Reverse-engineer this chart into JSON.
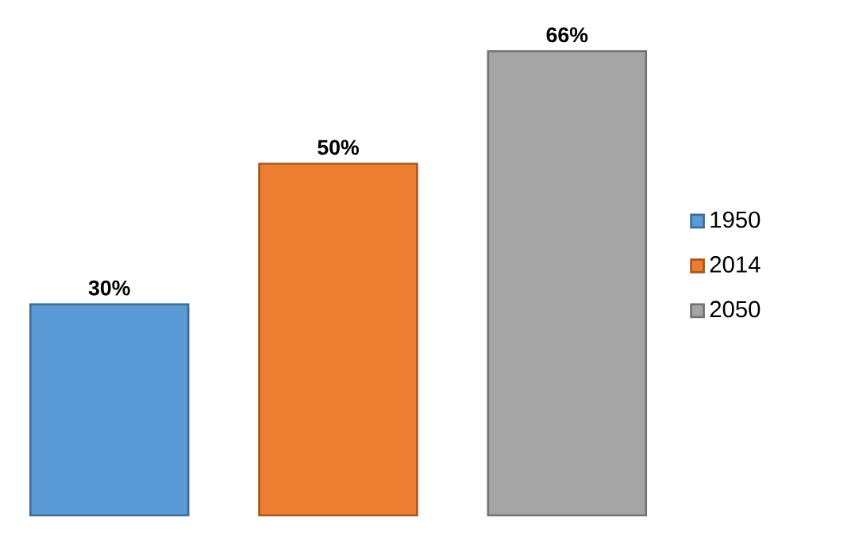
{
  "chart_data": {
    "type": "bar",
    "categories": [
      null
    ],
    "series": [
      {
        "name": "1950",
        "color": "#5b9bd5",
        "values": [
          30
        ],
        "value_labels": [
          "30%"
        ]
      },
      {
        "name": "2014",
        "color": "#ed7d31",
        "values": [
          50
        ],
        "value_labels": [
          "50%"
        ]
      },
      {
        "name": "2050",
        "color": "#a5a5a5",
        "values": [
          66
        ],
        "value_labels": [
          "66%"
        ]
      }
    ],
    "legend": "right"
  }
}
